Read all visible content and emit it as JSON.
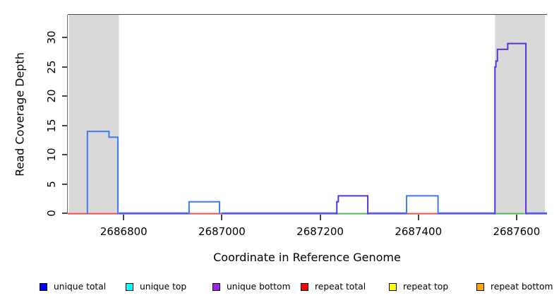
{
  "figure": {
    "x_axis_title": "Coordinate in Reference Genome",
    "y_axis_title": "Read Coverage Depth"
  },
  "legend": {
    "items": [
      {
        "label": "unique total",
        "color": "#0000ff"
      },
      {
        "label": "unique top",
        "color": "#00ffff"
      },
      {
        "label": "unique bottom",
        "color": "#a020f0"
      },
      {
        "label": "repeat total",
        "color": "#ff0000"
      },
      {
        "label": "repeat top",
        "color": "#ffff00"
      },
      {
        "label": "repeat bottom",
        "color": "#ffa500"
      }
    ]
  },
  "chart_data": {
    "type": "line",
    "subtype": "step-coverage",
    "title": "",
    "xlabel": "Coordinate in Reference Genome",
    "ylabel": "Read Coverage Depth",
    "xlim": [
      2686686,
      2687662
    ],
    "ylim": [
      0,
      34
    ],
    "x_ticks": [
      2686800,
      2687000,
      2687200,
      2687400,
      2687600
    ],
    "y_ticks": [
      0,
      5,
      10,
      15,
      20,
      25,
      30
    ],
    "grid": false,
    "legend_position": "bottom",
    "shaded_regions": {
      "color": "#d9d9d9",
      "ranges": [
        [
          2686688,
          2686790
        ],
        [
          2687556,
          2687658
        ]
      ]
    },
    "series": [
      {
        "name": "unique total",
        "line_color": "#3f7bf2",
        "steps": [
          [
            2686726,
            2686770,
            14
          ],
          [
            2686770,
            2686788,
            13
          ],
          [
            2686933,
            2686995,
            2
          ],
          [
            2687376,
            2687440,
            3
          ]
        ]
      },
      {
        "name": "unique bottom",
        "line_color": "#5d33d9",
        "steps": [
          [
            2687234,
            2687237,
            2
          ],
          [
            2687237,
            2687297,
            3
          ],
          [
            2687556,
            2687558,
            25
          ],
          [
            2687558,
            2687561,
            26
          ],
          [
            2687561,
            2687582,
            28
          ],
          [
            2687582,
            2687619,
            29
          ]
        ]
      }
    ],
    "zero_coverage_lines": [
      {
        "name": "unique baseline",
        "line_color": "#6a46e0",
        "overlay_color": "#3f7bf2",
        "ranges": [
          [
            2686790,
            2686933
          ],
          [
            2686999,
            2687234
          ],
          [
            2687297,
            2687376
          ],
          [
            2687441,
            2687556
          ],
          [
            2687619,
            2687662
          ]
        ]
      },
      {
        "name": "red baseline",
        "line_color": "#ef4e49",
        "ranges": [
          [
            2686686,
            2686790
          ],
          [
            2686933,
            2686999
          ],
          [
            2687377,
            2687441
          ]
        ]
      },
      {
        "name": "green baseline",
        "line_color": "#57b75c",
        "ranges": [
          [
            2687235,
            2687297
          ],
          [
            2687556,
            2687617
          ]
        ]
      }
    ]
  }
}
